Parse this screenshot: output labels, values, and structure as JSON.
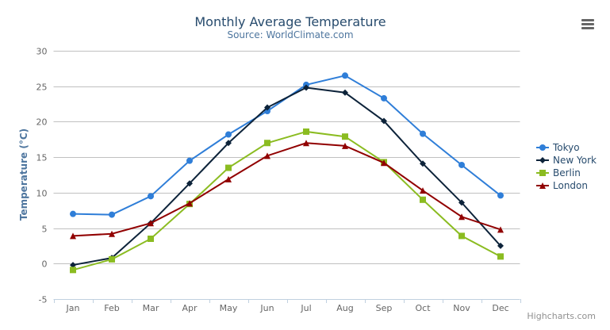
{
  "chart_data": {
    "type": "line",
    "title": "Monthly Average Temperature",
    "subtitle": "Source: WorldClimate.com",
    "xlabel": "",
    "ylabel": "Temperature (°C)",
    "ylim": [
      -5,
      30
    ],
    "yticks": [
      -5,
      0,
      5,
      10,
      15,
      20,
      25,
      30
    ],
    "grid": true,
    "legend_placement": "right",
    "categories": [
      "Jan",
      "Feb",
      "Mar",
      "Apr",
      "May",
      "Jun",
      "Jul",
      "Aug",
      "Sep",
      "Oct",
      "Nov",
      "Dec"
    ],
    "series": [
      {
        "name": "Tokyo",
        "color": "#2f7ed8",
        "marker": "circle",
        "values": [
          7.0,
          6.9,
          9.5,
          14.5,
          18.2,
          21.5,
          25.2,
          26.5,
          23.3,
          18.3,
          13.9,
          9.6
        ]
      },
      {
        "name": "New York",
        "color": "#0d233a",
        "marker": "diamond",
        "values": [
          -0.2,
          0.8,
          5.7,
          11.3,
          17.0,
          22.0,
          24.8,
          24.1,
          20.1,
          14.1,
          8.6,
          2.5
        ]
      },
      {
        "name": "Berlin",
        "color": "#8bbc21",
        "marker": "square",
        "values": [
          -0.9,
          0.6,
          3.5,
          8.4,
          13.5,
          17.0,
          18.6,
          17.9,
          14.3,
          9.0,
          3.9,
          1.0
        ]
      },
      {
        "name": "London",
        "color": "#910000",
        "marker": "triangle",
        "values": [
          3.9,
          4.2,
          5.7,
          8.5,
          11.9,
          15.2,
          17.0,
          16.6,
          14.2,
          10.3,
          6.6,
          4.8
        ]
      }
    ]
  },
  "credits": "Highcharts.com",
  "menu_icon": "hamburger-menu-icon"
}
